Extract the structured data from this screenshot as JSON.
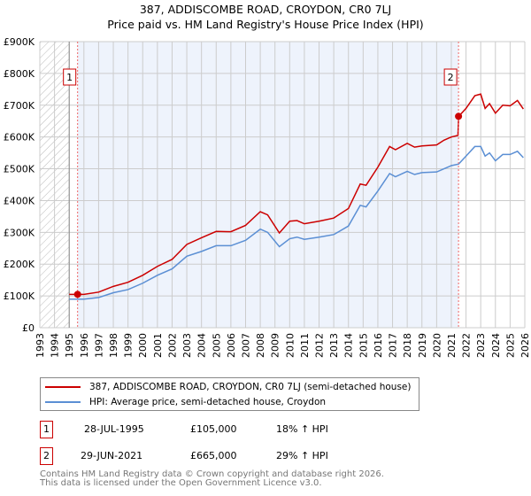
{
  "chart_data": {
    "type": "line",
    "title": "387, ADDISCOMBE ROAD, CROYDON, CR0 7LJ",
    "subtitle": "Price paid vs. HM Land Registry's House Price Index (HPI)",
    "xlim": [
      1993,
      2026
    ],
    "ylim": [
      0,
      900000
    ],
    "y_ticks": [
      "£0",
      "£100K",
      "£200K",
      "£300K",
      "£400K",
      "£500K",
      "£600K",
      "£700K",
      "£800K",
      "£900K"
    ],
    "x_ticks": [
      "1993",
      "1994",
      "1995",
      "1996",
      "1997",
      "1998",
      "1999",
      "2000",
      "2001",
      "2002",
      "2003",
      "2004",
      "2005",
      "2006",
      "2007",
      "2008",
      "2009",
      "2010",
      "2011",
      "2012",
      "2013",
      "2014",
      "2015",
      "2016",
      "2017",
      "2018",
      "2019",
      "2020",
      "2021",
      "2022",
      "2023",
      "2024",
      "2025",
      "2026"
    ],
    "grid": true,
    "series": [
      {
        "name": "387, ADDISCOMBE ROAD, CROYDON, CR0 7LJ (semi-detached house)",
        "color": "#cc0000",
        "x": [
          1995.0,
          1996,
          1997,
          1998,
          1999,
          2000,
          2001,
          2002,
          2003,
          2004,
          2005,
          2006,
          2007,
          2008,
          2008.5,
          2009.3,
          2010,
          2010.5,
          2011,
          2012,
          2013,
          2014,
          2014.8,
          2015.2,
          2016,
          2016.8,
          2017.2,
          2018,
          2018.5,
          2019,
          2020,
          2020.5,
          2021,
          2021.45,
          2021.5,
          2022,
          2022.6,
          2023,
          2023.3,
          2023.6,
          2024,
          2024.5,
          2025,
          2025.5,
          2025.9
        ],
        "y": [
          105000,
          105000,
          112000,
          130000,
          143000,
          165000,
          193000,
          215000,
          262000,
          283000,
          303000,
          302000,
          322000,
          365000,
          355000,
          298000,
          335000,
          337000,
          327000,
          335000,
          345000,
          375000,
          452000,
          448000,
          505000,
          570000,
          560000,
          580000,
          568000,
          572000,
          575000,
          590000,
          600000,
          605000,
          665000,
          690000,
          730000,
          735000,
          690000,
          705000,
          675000,
          700000,
          698000,
          715000,
          688000
        ]
      },
      {
        "name": "HPI: Average price, semi-detached house, Croydon",
        "color": "#5b8fd4",
        "x": [
          1995.0,
          1996,
          1997,
          1998,
          1999,
          2000,
          2001,
          2002,
          2003,
          2004,
          2005,
          2006,
          2007,
          2008,
          2008.5,
          2009.3,
          2010,
          2010.5,
          2011,
          2012,
          2013,
          2014,
          2014.8,
          2015.2,
          2016,
          2016.8,
          2017.2,
          2018,
          2018.5,
          2019,
          2020,
          2020.5,
          2021,
          2021.5,
          2022,
          2022.6,
          2023,
          2023.3,
          2023.6,
          2024,
          2024.5,
          2025,
          2025.5,
          2025.9
        ],
        "y": [
          90000,
          90000,
          95000,
          110000,
          120000,
          140000,
          165000,
          185000,
          225000,
          240000,
          258000,
          258000,
          275000,
          310000,
          300000,
          255000,
          280000,
          285000,
          278000,
          285000,
          293000,
          320000,
          385000,
          380000,
          430000,
          485000,
          475000,
          492000,
          482000,
          488000,
          490000,
          500000,
          510000,
          515000,
          540000,
          570000,
          570000,
          540000,
          550000,
          525000,
          545000,
          545000,
          555000,
          535000
        ]
      }
    ],
    "sales": [
      {
        "label": "1",
        "x": 1995.57,
        "y": 105000
      },
      {
        "label": "2",
        "x": 2021.49,
        "y": 665000
      }
    ]
  },
  "legend": {
    "red": "387, ADDISCOMBE ROAD, CROYDON, CR0 7LJ (semi-detached house)",
    "blue": "HPI: Average price, semi-detached house, Croydon"
  },
  "transactions": [
    {
      "num": "1",
      "date": "28-JUL-1995",
      "price": "£105,000",
      "hpi": "18% ↑ HPI"
    },
    {
      "num": "2",
      "date": "29-JUN-2021",
      "price": "£665,000",
      "hpi": "29% ↑ HPI"
    }
  ],
  "footer": [
    "Contains HM Land Registry data © Crown copyright and database right 2026.",
    "This data is licensed under the Open Government Licence v3.0."
  ]
}
